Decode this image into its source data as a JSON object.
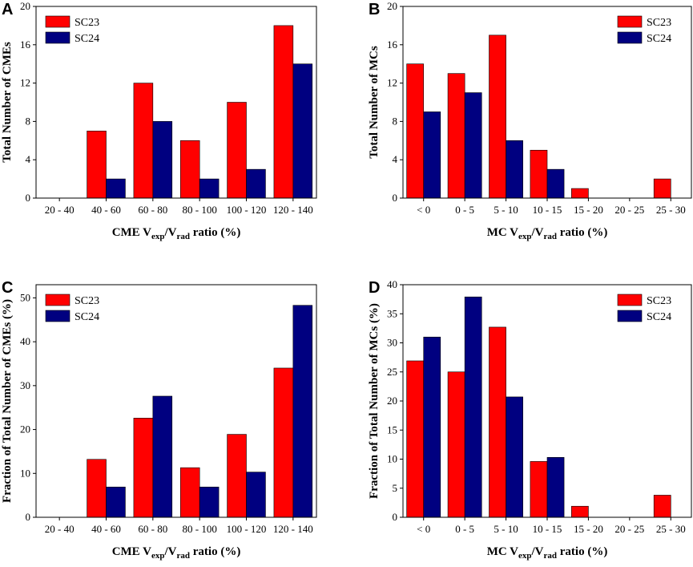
{
  "chart_data": [
    {
      "panel": "A",
      "type": "bar",
      "categories": [
        "20 - 40",
        "40 - 60",
        "60 - 80",
        "80 - 100",
        "100 - 120",
        "120 - 140"
      ],
      "series": [
        {
          "name": "SC23",
          "color": "#ff0000",
          "values": [
            0,
            7,
            12,
            6,
            10,
            18
          ]
        },
        {
          "name": "SC24",
          "color": "#000080",
          "values": [
            0,
            2,
            8,
            2,
            3,
            14
          ]
        }
      ],
      "ylabel": "Total Number of CMEs",
      "xlabel": {
        "a": "CME V",
        "b": "exp",
        "c": "/V",
        "d": "rad",
        "e": " ratio (%)"
      },
      "ylim": [
        0,
        20
      ],
      "yticks": [
        0,
        4,
        8,
        12,
        16,
        20
      ],
      "legend": "top-left"
    },
    {
      "panel": "B",
      "type": "bar",
      "categories": [
        "< 0",
        "0 - 5",
        "5 - 10",
        "10 - 15",
        "15 - 20",
        "20 - 25",
        "25 - 30"
      ],
      "series": [
        {
          "name": "SC23",
          "color": "#ff0000",
          "values": [
            14,
            13,
            17,
            5,
            1,
            0,
            2
          ]
        },
        {
          "name": "SC24",
          "color": "#000080",
          "values": [
            9,
            11,
            6,
            3,
            0,
            0,
            0
          ]
        }
      ],
      "ylabel": "Total Number of MCs",
      "xlabel": {
        "a": "MC V",
        "b": "exp",
        "c": "/V",
        "d": "rad",
        "e": " ratio (%)"
      },
      "ylim": [
        0,
        20
      ],
      "yticks": [
        0,
        4,
        8,
        12,
        16,
        20
      ],
      "legend": "top-right"
    },
    {
      "panel": "C",
      "type": "bar",
      "categories": [
        "20 - 40",
        "40 - 60",
        "60 - 80",
        "80 - 100",
        "100 - 120",
        "120 - 140"
      ],
      "series": [
        {
          "name": "SC23",
          "color": "#ff0000",
          "values": [
            0,
            13.2,
            22.6,
            11.3,
            18.9,
            34.0
          ]
        },
        {
          "name": "SC24",
          "color": "#000080",
          "values": [
            0,
            6.9,
            27.6,
            6.9,
            10.3,
            48.3
          ]
        }
      ],
      "ylabel": "Fraction of Total Number of CMEs  (%)",
      "xlabel": {
        "a": "CME V",
        "b": "exp",
        "c": "/V",
        "d": "rad",
        "e": " ratio (%)"
      },
      "ylim": [
        0,
        53
      ],
      "yticks": [
        0,
        10,
        20,
        30,
        40,
        50
      ],
      "legend": "top-left"
    },
    {
      "panel": "D",
      "type": "bar",
      "categories": [
        "< 0",
        "0 - 5",
        "5 - 10",
        "10 - 15",
        "15 - 20",
        "20 - 25",
        "25 - 30"
      ],
      "series": [
        {
          "name": "SC23",
          "color": "#ff0000",
          "values": [
            26.9,
            25.0,
            32.7,
            9.6,
            1.9,
            0,
            3.8
          ]
        },
        {
          "name": "SC24",
          "color": "#000080",
          "values": [
            31.0,
            37.9,
            20.7,
            10.3,
            0,
            0,
            0
          ]
        }
      ],
      "ylabel": "Fraction of Total Number of MCs  (%)",
      "xlabel": {
        "a": "MC V",
        "b": "exp",
        "c": "/V",
        "d": "rad",
        "e": " ratio (%)"
      },
      "ylim": [
        0,
        40
      ],
      "yticks": [
        0,
        5,
        10,
        15,
        20,
        25,
        30,
        35,
        40
      ],
      "legend": "top-right"
    }
  ]
}
